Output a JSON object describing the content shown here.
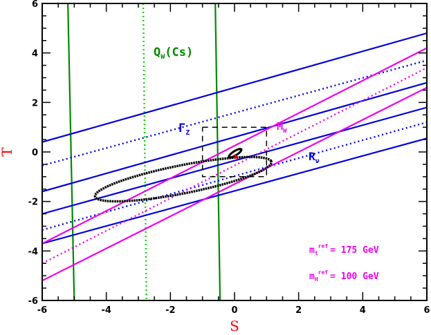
{
  "chart_data": {
    "type": "line",
    "title": "",
    "xlabel": "S",
    "ylabel": "T",
    "xlim": [
      -6,
      6
    ],
    "ylim": [
      -6,
      6
    ],
    "xticks": [
      "-6",
      "-4",
      "-2",
      "0",
      "2",
      "4",
      "6"
    ],
    "yticks": [
      "-6",
      "-4",
      "-2",
      "0",
      "2",
      "4",
      "6"
    ],
    "grid": false,
    "series": [
      {
        "name": "Q_W(Cs)",
        "color": "#008800",
        "style": "solid",
        "x": [
          -5.2,
          -5.0
        ],
        "y": [
          6,
          -6
        ]
      },
      {
        "name": "Q_W(Cs)",
        "color": "#008800",
        "style": "solid",
        "x": [
          -0.6,
          -0.45
        ],
        "y": [
          6,
          -6
        ]
      },
      {
        "name": "Q_W(Cs)",
        "color": "#00dd00",
        "style": "dotted",
        "x": [
          -2.85,
          -2.75
        ],
        "y": [
          6,
          -6
        ]
      },
      {
        "name": "Γ_Z",
        "color": "#0000dd",
        "style": "solid",
        "x": [
          -6,
          6
        ],
        "y": [
          0.4,
          4.8
        ]
      },
      {
        "name": "Γ_Z",
        "color": "#0000dd",
        "style": "solid",
        "x": [
          -6,
          6
        ],
        "y": [
          -1.6,
          2.8
        ]
      },
      {
        "name": "Γ_Z",
        "color": "#0000dd",
        "style": "dotted",
        "x": [
          -6,
          6
        ],
        "y": [
          -0.55,
          3.7
        ]
      },
      {
        "name": "R_ν",
        "color": "#0000dd",
        "style": "solid",
        "x": [
          -6,
          6
        ],
        "y": [
          -2.5,
          1.8
        ]
      },
      {
        "name": "R_ν",
        "color": "#0000dd",
        "style": "solid",
        "x": [
          -6,
          6
        ],
        "y": [
          -3.7,
          0.55
        ]
      },
      {
        "name": "R_ν",
        "color": "#0000dd",
        "style": "dotted",
        "x": [
          -6,
          6
        ],
        "y": [
          -3.15,
          1.2
        ]
      },
      {
        "name": "M_W",
        "color": "#ee00ee",
        "style": "solid",
        "x": [
          -6,
          6
        ],
        "y": [
          -3.7,
          4.2
        ]
      },
      {
        "name": "M_W",
        "color": "#ee00ee",
        "style": "solid",
        "x": [
          -6,
          6
        ],
        "y": [
          -5.2,
          2.6
        ]
      },
      {
        "name": "M_W",
        "color": "#ee00ee",
        "style": "dotted",
        "x": [
          -6,
          6
        ],
        "y": [
          -4.5,
          3.4
        ]
      },
      {
        "name": "",
        "color": "#000000",
        "style": "dashed",
        "x": [
          -1,
          1,
          1,
          -1,
          -1
        ],
        "y": [
          1,
          1,
          -1,
          -1,
          1
        ]
      }
    ],
    "ellipses": [
      {
        "color": "#000000",
        "cx": -1.6,
        "cy": -1.1,
        "rx": 2.9,
        "ry": 0.55,
        "angle_deg": 19
      },
      {
        "color": "#000000",
        "cx": 0.02,
        "cy": -0.05,
        "rx": 0.28,
        "ry": 0.07,
        "angle_deg": 50
      }
    ],
    "arrow": {
      "color": "#ff0000",
      "from": [
        0.1,
        -0.3
      ],
      "to": [
        0.0,
        -0.1
      ]
    }
  },
  "annotations": {
    "qw": {
      "main": "Q",
      "sub": "W",
      "rest": "(Cs)",
      "color": "#008800"
    },
    "gz": {
      "main": "Γ",
      "sub": "Z",
      "color": "#0000dd"
    },
    "mw": {
      "main": "M",
      "sub": "W",
      "color": "#ee00ee"
    },
    "rnu": {
      "main": "R",
      "sub": "ν",
      "color": "#0000dd"
    },
    "mt": {
      "main": "m",
      "sub": "t",
      "sup": "ref",
      "rest": "= 175 GeV",
      "color": "#ee00ee"
    },
    "mh": {
      "main": "m",
      "sub": "H",
      "sup": "ref",
      "rest": "= 100 GeV",
      "color": "#ee00ee"
    }
  }
}
